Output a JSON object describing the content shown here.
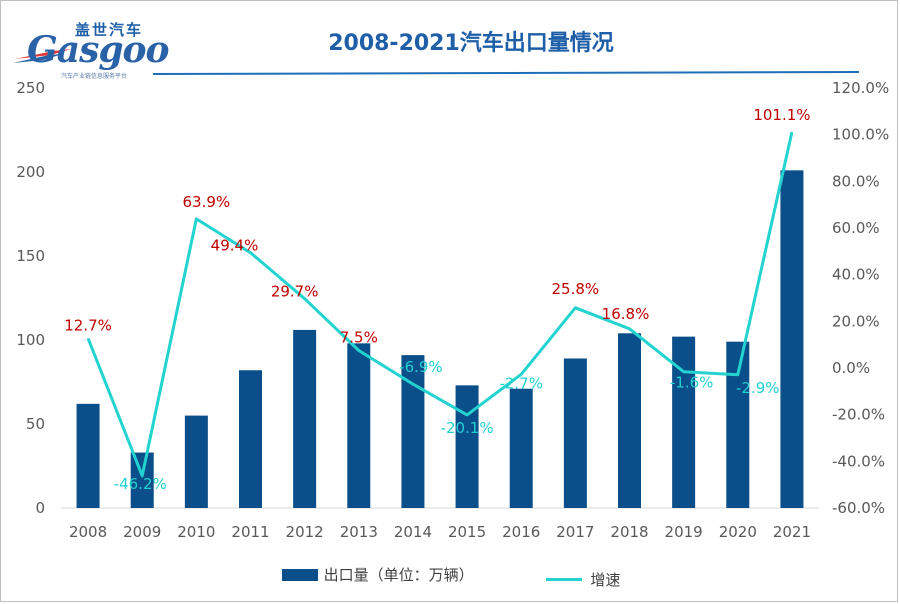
{
  "brand": {
    "name_cn": "盖世汽车",
    "name_en": "Gasgoo",
    "tagline": "汽车产业链信息服务平台"
  },
  "colors": {
    "bar": "#0b4f8a",
    "line": "#22d3d0",
    "label_positive": "#c00000",
    "label_negative": "#1fd0d0",
    "title": "#1f5fa8"
  },
  "chart_data": {
    "type": "bar",
    "title": "2008-2021汽车出口量情况",
    "categories": [
      "2008",
      "2009",
      "2010",
      "2011",
      "2012",
      "2013",
      "2014",
      "2015",
      "2016",
      "2017",
      "2018",
      "2019",
      "2020",
      "2021"
    ],
    "series": [
      {
        "name": "出口量（单位：万辆）",
        "type": "bar",
        "axis": "left",
        "values": [
          62,
          33,
          55,
          82,
          106,
          98,
          91,
          73,
          71,
          89,
          104,
          102,
          99,
          201
        ]
      },
      {
        "name": "增速",
        "type": "line",
        "axis": "right",
        "values": [
          12.7,
          -46.2,
          63.9,
          49.4,
          29.7,
          7.5,
          -6.9,
          -20.1,
          -2.7,
          25.8,
          16.8,
          -1.6,
          -2.9,
          101.1
        ],
        "labels": [
          "12.7%",
          "-46.2%",
          "63.9%",
          "49.4%",
          "29.7%",
          "7.5%",
          "-6.9%",
          "-20.1%",
          "-2.7%",
          "25.8%",
          "16.8%",
          "-1.6%",
          "-2.9%",
          "101.1%"
        ]
      }
    ],
    "y_left": {
      "ylim": [
        0,
        250
      ],
      "ticks": [
        "0",
        "50",
        "100",
        "150",
        "200",
        "250"
      ]
    },
    "y_right": {
      "ylim": [
        -60,
        120
      ],
      "ticks": [
        "-60.0%",
        "-40.0%",
        "-20.0%",
        "0.0%",
        "20.0%",
        "40.0%",
        "60.0%",
        "80.0%",
        "100.0%",
        "120.0%"
      ]
    },
    "legend": {
      "position": "bottom",
      "items": [
        "出口量（单位：万辆）",
        "增速"
      ]
    },
    "grid": false
  }
}
